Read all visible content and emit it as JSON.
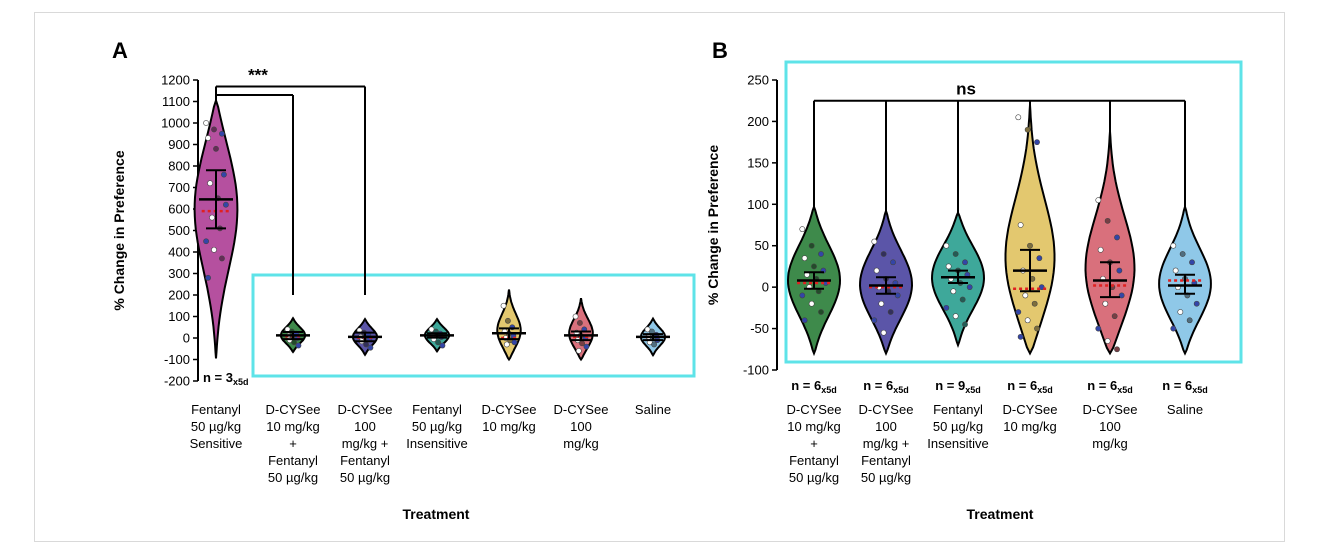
{
  "chart_data": [
    {
      "panel": "A",
      "type": "violin",
      "xlabel": "Treatment",
      "ylabel": "% Change in Preference",
      "ylim": [
        -200,
        1200
      ],
      "yticks": [
        -200,
        -100,
        0,
        100,
        200,
        300,
        400,
        500,
        600,
        700,
        800,
        900,
        1000,
        1100,
        1200
      ],
      "significance": "***",
      "n_label": {
        "prefix": "n = 3",
        "sub": "x5d"
      },
      "categories": [
        {
          "lines": [
            "Fentanyl",
            "50 µg/kg",
            "Sensitive"
          ],
          "color": "#b5509f",
          "mean": 645,
          "median": 590,
          "ci": [
            510,
            780
          ],
          "vmin": -95,
          "vmax": 1105,
          "width_scale": 1.0,
          "points": [
            1000,
            970,
            950,
            930,
            880,
            760,
            720,
            650,
            620,
            560,
            510,
            450,
            410,
            370,
            280
          ]
        },
        {
          "lines": [
            "D-CYSee",
            "10 mg/kg",
            "+",
            "Fentanyl",
            "50 µg/kg"
          ],
          "color": "#3e8a4b",
          "mean": 12,
          "median": 8,
          "ci": [
            -5,
            28
          ],
          "vmin": -65,
          "vmax": 92,
          "width_scale": 0.55,
          "points": [
            40,
            30,
            20,
            10,
            5,
            0,
            -10,
            -20,
            -35
          ]
        },
        {
          "lines": [
            "D-CYSee",
            "100",
            "mg/kg +",
            "Fentanyl",
            "50 µg/kg"
          ],
          "color": "#5b55a8",
          "mean": 5,
          "median": 2,
          "ci": [
            -15,
            25
          ],
          "vmin": -78,
          "vmax": 88,
          "width_scale": 0.55,
          "points": [
            35,
            25,
            15,
            5,
            0,
            -5,
            -15,
            -30,
            -45
          ]
        },
        {
          "lines": [
            "Fentanyl",
            "50 µg/kg",
            "Insensitive"
          ],
          "color": "#3ea89a",
          "mean": 12,
          "median": 10,
          "ci": [
            2,
            22
          ],
          "vmin": -62,
          "vmax": 88,
          "width_scale": 0.55,
          "points": [
            40,
            30,
            20,
            15,
            10,
            5,
            -5,
            -20,
            -35
          ]
        },
        {
          "lines": [
            "D-CYSee",
            "10 mg/kg"
          ],
          "color": "#e3c86f",
          "mean": 22,
          "median": 0,
          "ci": [
            -5,
            45
          ],
          "vmin": -100,
          "vmax": 225,
          "width_scale": 0.55,
          "points": [
            150,
            80,
            50,
            30,
            20,
            10,
            0,
            -10,
            -20,
            -30
          ]
        },
        {
          "lines": [
            "D-CYSee",
            "100",
            "mg/kg"
          ],
          "color": "#d9707c",
          "mean": 12,
          "median": 5,
          "ci": [
            -10,
            30
          ],
          "vmin": -100,
          "vmax": 185,
          "width_scale": 0.55,
          "points": [
            100,
            70,
            40,
            25,
            10,
            0,
            -10,
            -25,
            -40,
            -60
          ]
        },
        {
          "lines": [
            "Saline"
          ],
          "color": "#8fc8e8",
          "mean": 5,
          "median": 5,
          "ci": [
            -10,
            18
          ],
          "vmin": -80,
          "vmax": 90,
          "width_scale": 0.55,
          "points": [
            40,
            30,
            15,
            5,
            0,
            -10,
            -20,
            -30
          ]
        }
      ]
    },
    {
      "panel": "B",
      "type": "violin",
      "xlabel": "Treatment",
      "ylabel": "% Change in Preference",
      "ylim": [
        -100,
        250
      ],
      "yticks": [
        -100,
        -50,
        0,
        50,
        100,
        150,
        200,
        250
      ],
      "significance": "ns",
      "categories": [
        {
          "lines": [
            "D-CYSee",
            "10 mg/kg",
            "+",
            "Fentanyl",
            "50 µg/kg"
          ],
          "color": "#3e8a4b",
          "mean": 8,
          "median": 5,
          "ci": [
            -2,
            18
          ],
          "vmin": -80,
          "vmax": 97,
          "n": {
            "prefix": "n = 6",
            "sub": "x5d"
          },
          "points": [
            70,
            50,
            40,
            35,
            25,
            20,
            15,
            10,
            5,
            0,
            -5,
            -10,
            -20,
            -30,
            -40
          ]
        },
        {
          "lines": [
            "D-CYSee",
            "100",
            "mg/kg +",
            "Fentanyl",
            "50 µg/kg"
          ],
          "color": "#5b55a8",
          "mean": 2,
          "median": 0,
          "ci": [
            -8,
            12
          ],
          "vmin": -80,
          "vmax": 92,
          "n": {
            "prefix": "n = 6",
            "sub": "x5d"
          },
          "points": [
            55,
            40,
            30,
            20,
            10,
            5,
            0,
            -5,
            -10,
            -20,
            -30,
            -40,
            -55
          ]
        },
        {
          "lines": [
            "Fentanyl",
            "50 µg/kg",
            "Insensitive"
          ],
          "color": "#3ea89a",
          "mean": 12,
          "median": 12,
          "ci": [
            5,
            20
          ],
          "vmin": -70,
          "vmax": 90,
          "n": {
            "prefix": "n = 9",
            "sub": "x5d"
          },
          "points": [
            50,
            40,
            30,
            25,
            20,
            15,
            10,
            5,
            0,
            -5,
            -15,
            -25,
            -35,
            -45
          ]
        },
        {
          "lines": [
            "D-CYSee",
            "10 mg/kg"
          ],
          "color": "#e3c86f",
          "mean": 20,
          "median": -2,
          "ci": [
            -5,
            45
          ],
          "vmin": -80,
          "vmax": 220,
          "n": {
            "prefix": "n = 6",
            "sub": "x5d"
          },
          "points": [
            205,
            190,
            175,
            75,
            50,
            35,
            20,
            10,
            0,
            -10,
            -20,
            -30,
            -40,
            -50,
            -60
          ]
        },
        {
          "lines": [
            "D-CYSee",
            "100",
            "mg/kg"
          ],
          "color": "#d9707c",
          "mean": 8,
          "median": 2,
          "ci": [
            -12,
            30
          ],
          "vmin": -80,
          "vmax": 188,
          "n": {
            "prefix": "n = 6",
            "sub": "x5d"
          },
          "points": [
            105,
            80,
            60,
            45,
            30,
            20,
            10,
            0,
            -10,
            -20,
            -35,
            -50,
            -65,
            -75
          ]
        },
        {
          "lines": [
            "Saline"
          ],
          "color": "#8fc8e8",
          "mean": 2,
          "median": 8,
          "ci": [
            -8,
            15
          ],
          "vmin": -80,
          "vmax": 97,
          "n": {
            "prefix": "n = 6",
            "sub": "x5d"
          },
          "points": [
            50,
            40,
            30,
            20,
            10,
            5,
            0,
            -10,
            -20,
            -30,
            -40,
            -50
          ]
        }
      ]
    }
  ]
}
